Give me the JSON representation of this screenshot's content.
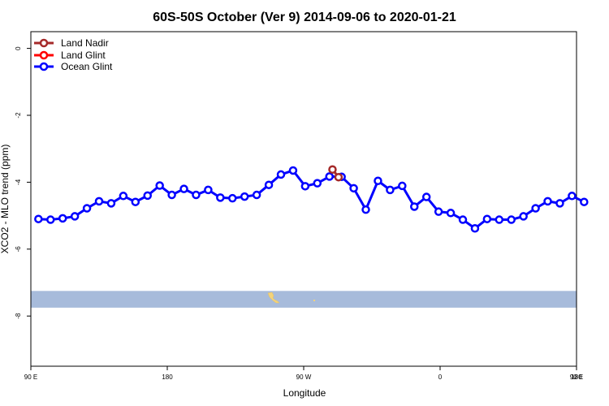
{
  "chart_data": {
    "type": "line",
    "title": "60S-50S October (Ver 9)   2014-09-06 to 2020-01-21",
    "xlabel": "Longitude",
    "ylabel": "XCO2 - MLO trend (ppm)",
    "xlim": [
      90,
      450
    ],
    "ylim": [
      -9.5,
      0.5
    ],
    "x_ticks": [
      {
        "value": 90,
        "label": "90 E"
      },
      {
        "value": 180,
        "label": "180"
      },
      {
        "value": 270,
        "label": "90 W"
      },
      {
        "value": 360,
        "label": "0"
      },
      {
        "value": 450,
        "label": "90 E"
      },
      {
        "value": 540,
        "label": "180"
      }
    ],
    "y_ticks": [
      {
        "value": 0,
        "label": "0"
      },
      {
        "value": -2,
        "label": "-2"
      },
      {
        "value": -4,
        "label": "-4"
      },
      {
        "value": -6,
        "label": "-6"
      },
      {
        "value": -8,
        "label": "-8"
      }
    ],
    "grid": false,
    "legend_position": "top-left",
    "series": [
      {
        "name": "Land Nadir",
        "color": "#a52a2a",
        "points": [
          [
            289,
            -3.62
          ],
          [
            293,
            -3.85
          ]
        ]
      },
      {
        "name": "Land Glint",
        "color": "#ff0000",
        "points": []
      },
      {
        "name": "Ocean Glint",
        "color": "#0000ff",
        "points": [
          [
            95,
            -5.1
          ],
          [
            103,
            -5.12
          ],
          [
            111,
            -5.08
          ],
          [
            119,
            -5.02
          ],
          [
            127,
            -4.78
          ],
          [
            135,
            -4.57
          ],
          [
            143,
            -4.63
          ],
          [
            151,
            -4.41
          ],
          [
            159,
            -4.59
          ],
          [
            167,
            -4.4
          ],
          [
            175,
            -4.1
          ],
          [
            183,
            -4.38
          ],
          [
            191,
            -4.2
          ],
          [
            199,
            -4.38
          ],
          [
            207,
            -4.23
          ],
          [
            215,
            -4.46
          ],
          [
            223,
            -4.48
          ],
          [
            231,
            -4.43
          ],
          [
            239,
            -4.38
          ],
          [
            247,
            -4.08
          ],
          [
            255,
            -3.77
          ],
          [
            263,
            -3.65
          ],
          [
            271,
            -4.12
          ],
          [
            279,
            -4.03
          ],
          [
            287,
            -3.83
          ],
          [
            295,
            -3.84
          ],
          [
            303,
            -4.18
          ],
          [
            311,
            -4.82
          ],
          [
            319,
            -3.96
          ],
          [
            327,
            -4.23
          ],
          [
            335,
            -4.11
          ],
          [
            343,
            -4.73
          ],
          [
            351,
            -4.44
          ],
          [
            359,
            -4.88
          ],
          [
            367,
            -4.92
          ],
          [
            375,
            -5.12
          ],
          [
            383,
            -5.38
          ],
          [
            391,
            -5.1
          ],
          [
            399,
            -5.12
          ],
          [
            407,
            -5.12
          ],
          [
            415,
            -5.02
          ],
          [
            423,
            -4.78
          ],
          [
            431,
            -4.57
          ],
          [
            439,
            -4.63
          ],
          [
            447,
            -4.41
          ],
          [
            455,
            -4.59
          ]
        ]
      }
    ],
    "map_band": {
      "y_range": [
        -7.25,
        -7.75
      ],
      "color": "#a7bbdb"
    }
  }
}
